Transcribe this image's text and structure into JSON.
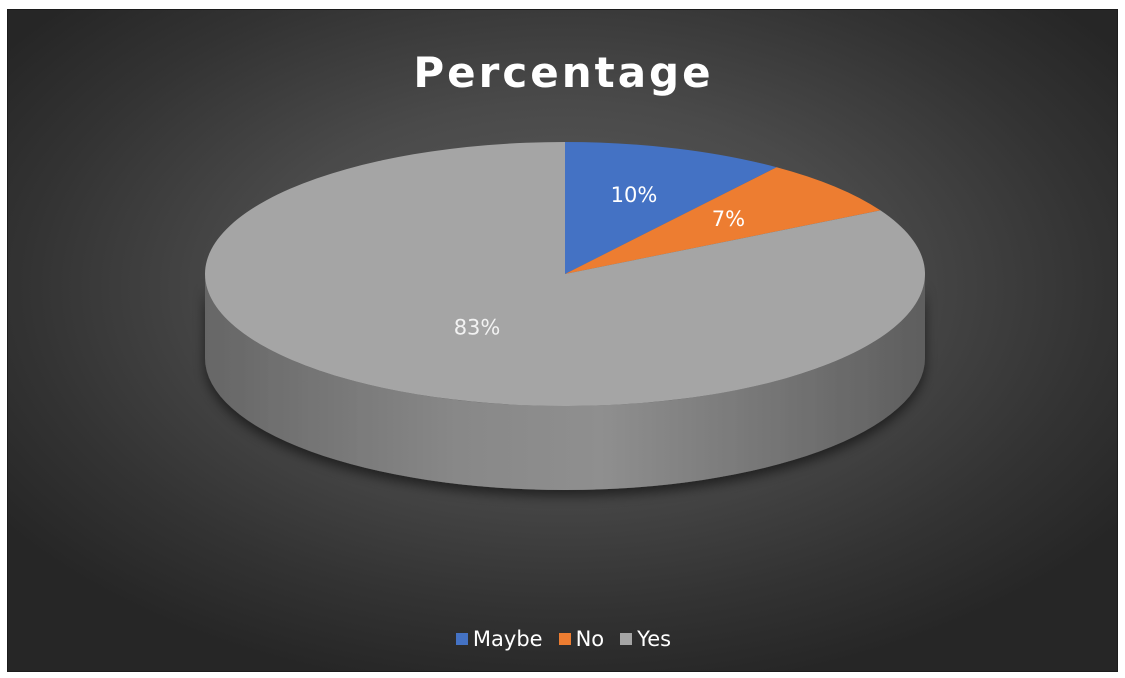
{
  "chart_data": {
    "type": "pie",
    "title": "Percentage",
    "categories": [
      "Maybe",
      "No",
      "Yes"
    ],
    "values": [
      10,
      7,
      83
    ],
    "data_labels": [
      "10%",
      "7%",
      "83%"
    ],
    "colors": [
      "#4472C4",
      "#ED7D31",
      "#A5A5A5"
    ],
    "legend_position": "bottom",
    "style": "3d"
  }
}
